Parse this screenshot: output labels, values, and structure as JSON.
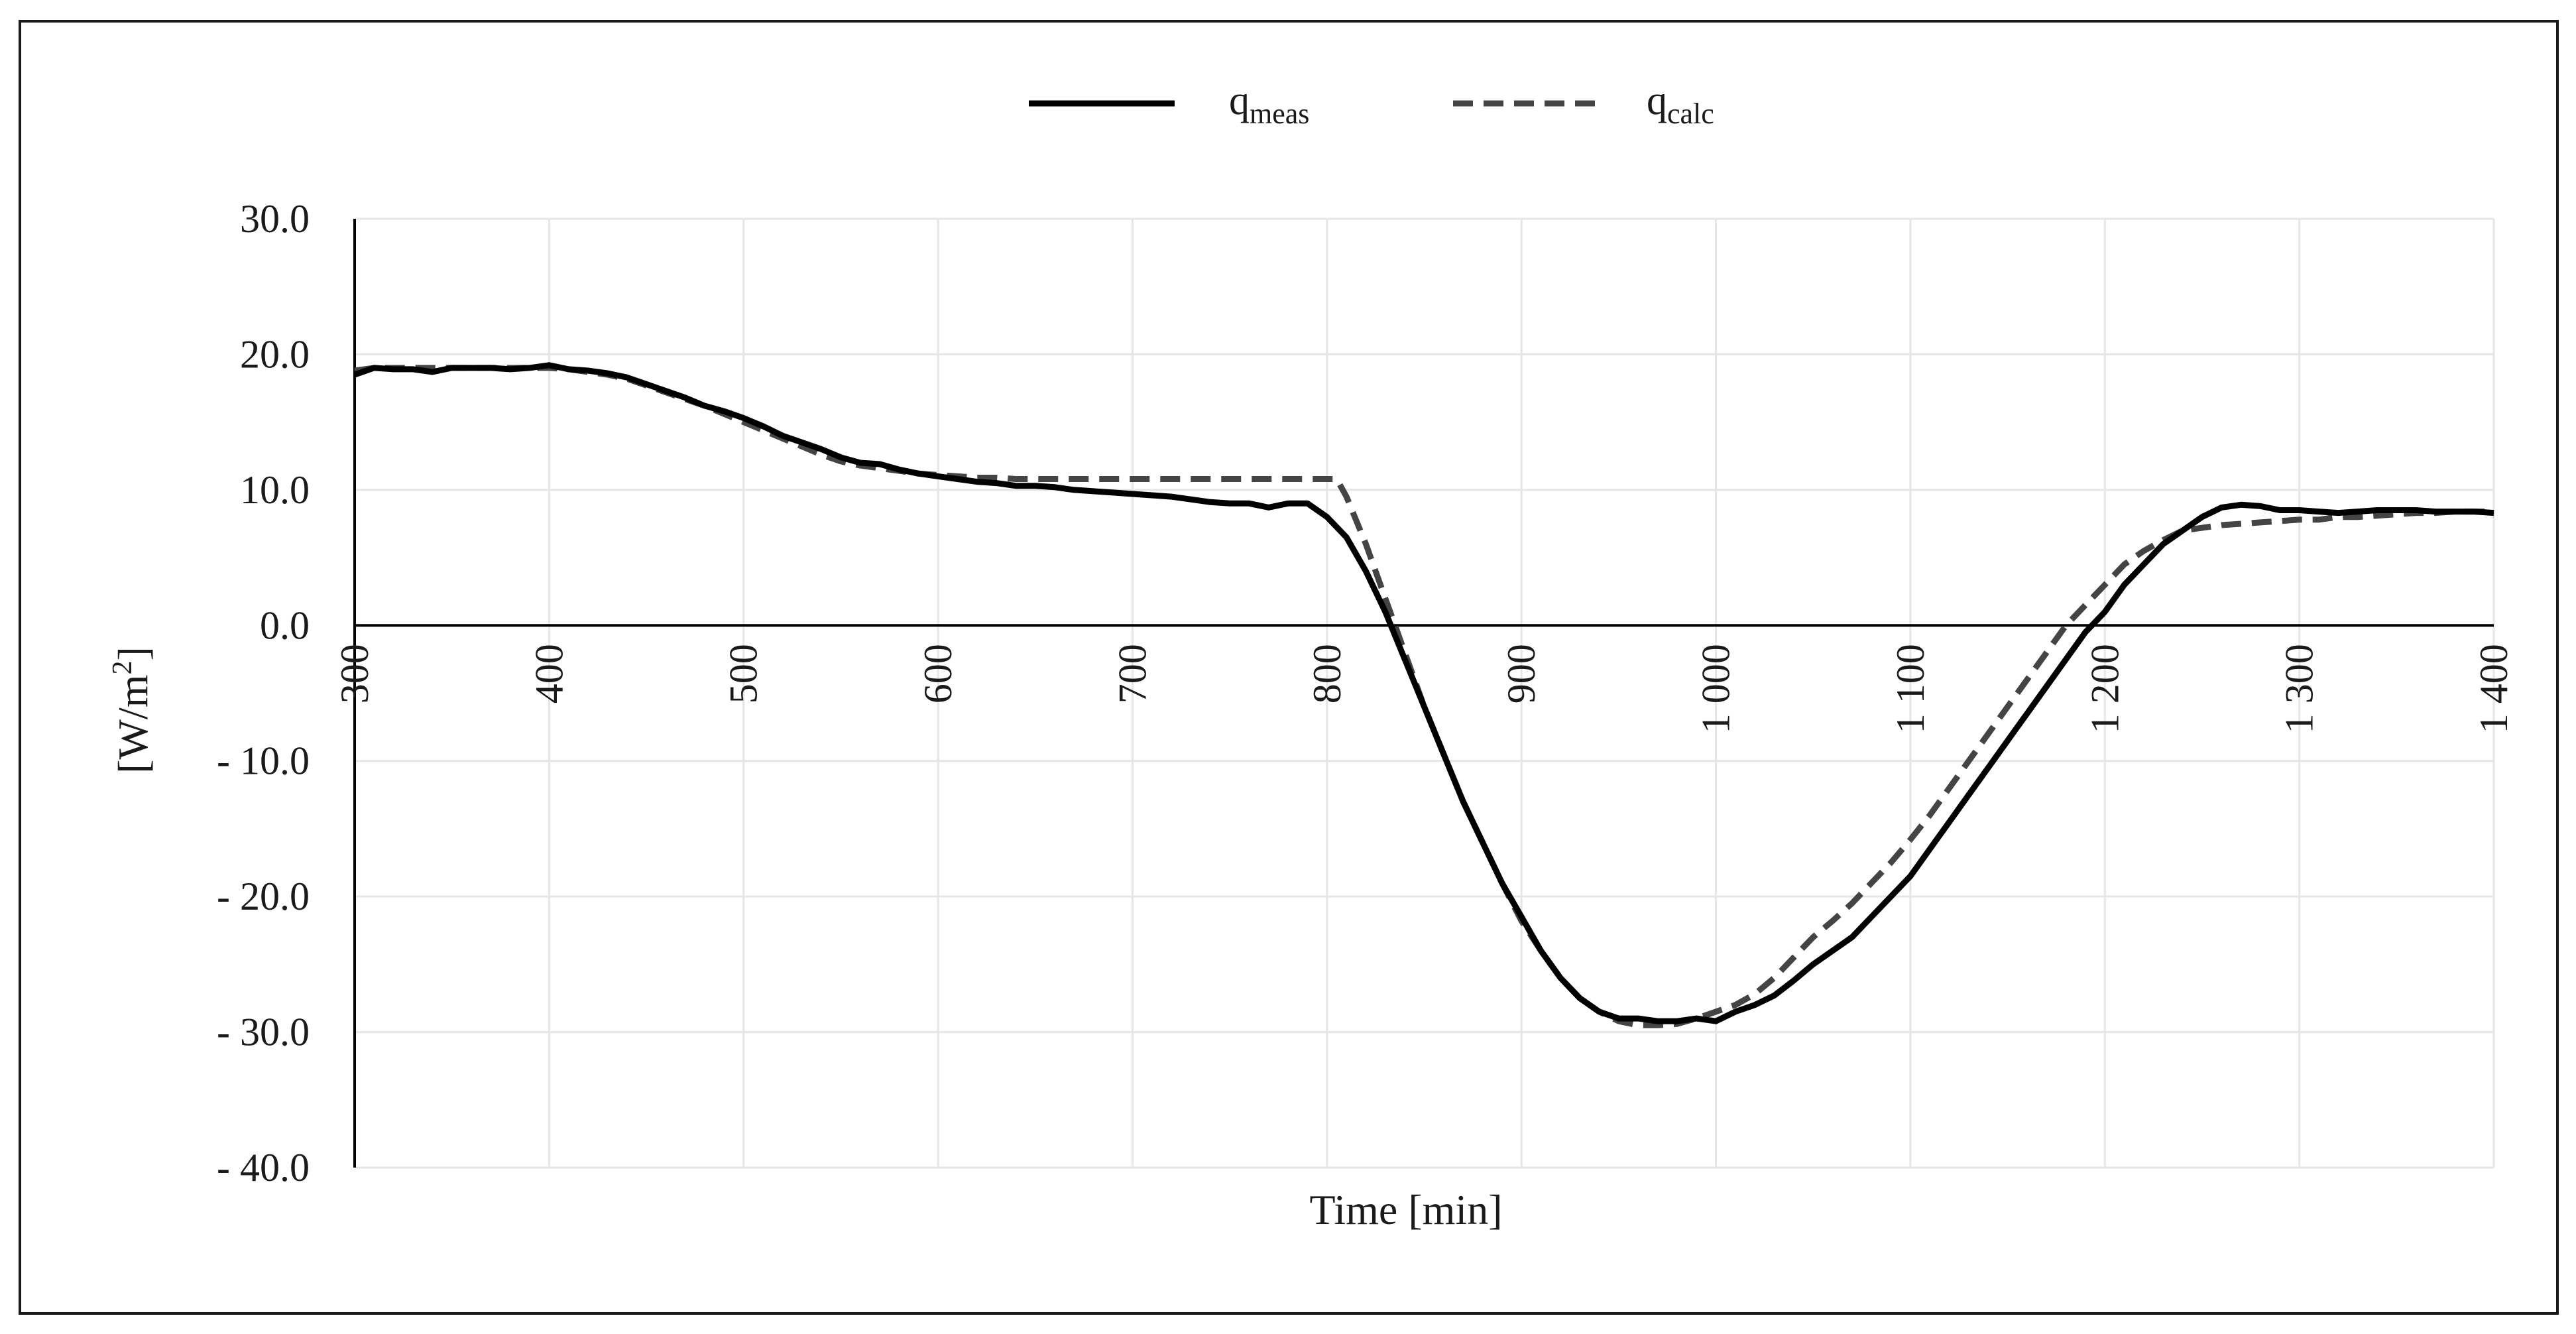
{
  "chart_data": {
    "type": "line",
    "title": "",
    "xlabel": "Time [min]",
    "ylabel_main": "[W/m",
    "ylabel_sup": "2",
    "ylabel_close": "]",
    "xlim": [
      300,
      1400
    ],
    "ylim": [
      -40,
      30
    ],
    "xticks": [
      {
        "value": 300,
        "label": "300"
      },
      {
        "value": 400,
        "label": "400"
      },
      {
        "value": 500,
        "label": "500"
      },
      {
        "value": 600,
        "label": "600"
      },
      {
        "value": 700,
        "label": "700"
      },
      {
        "value": 800,
        "label": "800"
      },
      {
        "value": 900,
        "label": "900"
      },
      {
        "value": 1000,
        "label": "1 000"
      },
      {
        "value": 1100,
        "label": "1 100"
      },
      {
        "value": 1200,
        "label": "1 200"
      },
      {
        "value": 1300,
        "label": "1 300"
      },
      {
        "value": 1400,
        "label": "1 400"
      }
    ],
    "yticks": [
      {
        "value": 30,
        "label": "30.0"
      },
      {
        "value": 20,
        "label": "20.0"
      },
      {
        "value": 10,
        "label": "10.0"
      },
      {
        "value": 0,
        "label": "0.0"
      },
      {
        "value": -10,
        "label": "- 10.0"
      },
      {
        "value": -20,
        "label": "- 20.0"
      },
      {
        "value": -30,
        "label": "- 30.0"
      },
      {
        "value": -40,
        "label": "- 40.0"
      }
    ],
    "grid": true,
    "legend_position": "top-center",
    "series": [
      {
        "name": "q_meas",
        "label_base": "q",
        "label_sub": "meas",
        "color": "#000000",
        "style": "solid",
        "x": [
          300,
          310,
          320,
          330,
          340,
          350,
          360,
          370,
          380,
          390,
          400,
          410,
          420,
          430,
          440,
          450,
          460,
          470,
          480,
          490,
          500,
          510,
          520,
          530,
          540,
          550,
          560,
          570,
          580,
          590,
          600,
          610,
          620,
          630,
          640,
          650,
          660,
          670,
          680,
          690,
          700,
          710,
          720,
          730,
          740,
          750,
          760,
          770,
          780,
          790,
          800,
          810,
          820,
          830,
          840,
          850,
          860,
          870,
          880,
          890,
          900,
          910,
          920,
          930,
          940,
          950,
          960,
          970,
          980,
          990,
          1000,
          1010,
          1020,
          1030,
          1040,
          1050,
          1060,
          1070,
          1080,
          1090,
          1100,
          1110,
          1120,
          1130,
          1140,
          1150,
          1160,
          1170,
          1180,
          1190,
          1200,
          1210,
          1220,
          1230,
          1240,
          1250,
          1260,
          1270,
          1280,
          1290,
          1300,
          1310,
          1320,
          1330,
          1340,
          1350,
          1360,
          1370,
          1380,
          1390,
          1400
        ],
        "y": [
          18.5,
          19.0,
          18.9,
          18.9,
          18.7,
          19.0,
          19.0,
          19.0,
          18.9,
          19.0,
          19.2,
          18.9,
          18.8,
          18.6,
          18.3,
          17.8,
          17.3,
          16.8,
          16.2,
          15.8,
          15.3,
          14.7,
          14.0,
          13.5,
          13.0,
          12.4,
          12.0,
          11.9,
          11.5,
          11.2,
          11.0,
          10.8,
          10.6,
          10.5,
          10.3,
          10.3,
          10.2,
          10.0,
          9.9,
          9.8,
          9.7,
          9.6,
          9.5,
          9.3,
          9.1,
          9.0,
          9.0,
          8.7,
          9.0,
          9.0,
          8.0,
          6.5,
          4.0,
          1.0,
          -2.5,
          -6.0,
          -9.5,
          -13.0,
          -16.0,
          -19.0,
          -21.5,
          -24.0,
          -26.0,
          -27.5,
          -28.5,
          -29.0,
          -29.0,
          -29.2,
          -29.2,
          -29.0,
          -29.2,
          -28.5,
          -28.0,
          -27.3,
          -26.2,
          -25.0,
          -24.0,
          -23.0,
          -21.5,
          -20.0,
          -18.5,
          -16.5,
          -14.5,
          -12.5,
          -10.5,
          -8.5,
          -6.5,
          -4.5,
          -2.5,
          -0.5,
          1.0,
          3.0,
          4.5,
          6.0,
          7.0,
          8.0,
          8.7,
          8.9,
          8.8,
          8.5,
          8.5,
          8.4,
          8.3,
          8.4,
          8.5,
          8.5,
          8.5,
          8.4,
          8.4,
          8.4,
          8.3
        ]
      },
      {
        "name": "q_calc",
        "label_base": "q",
        "label_sub": "calc",
        "color": "#444444",
        "style": "dashed",
        "x": [
          300,
          310,
          320,
          330,
          340,
          350,
          360,
          370,
          380,
          390,
          400,
          410,
          420,
          430,
          440,
          450,
          460,
          470,
          480,
          490,
          500,
          510,
          520,
          530,
          540,
          550,
          560,
          570,
          580,
          590,
          600,
          610,
          620,
          630,
          640,
          650,
          660,
          670,
          680,
          690,
          700,
          710,
          720,
          730,
          740,
          750,
          760,
          770,
          780,
          790,
          800,
          805,
          810,
          820,
          830,
          840,
          850,
          860,
          870,
          880,
          890,
          900,
          910,
          920,
          930,
          940,
          950,
          960,
          970,
          980,
          990,
          1000,
          1010,
          1020,
          1030,
          1040,
          1050,
          1060,
          1070,
          1080,
          1090,
          1100,
          1110,
          1120,
          1130,
          1140,
          1150,
          1160,
          1170,
          1180,
          1190,
          1200,
          1210,
          1220,
          1230,
          1240,
          1250,
          1260,
          1270,
          1280,
          1290,
          1300,
          1310,
          1320,
          1330,
          1340,
          1350,
          1360,
          1370,
          1380,
          1390,
          1400
        ],
        "y": [
          18.8,
          19.0,
          19.0,
          19.0,
          19.0,
          19.0,
          19.0,
          19.0,
          19.0,
          19.0,
          19.0,
          18.9,
          18.7,
          18.5,
          18.2,
          17.7,
          17.2,
          16.7,
          16.2,
          15.6,
          15.0,
          14.4,
          13.8,
          13.2,
          12.6,
          12.1,
          11.8,
          11.6,
          11.4,
          11.2,
          11.1,
          11.0,
          10.9,
          10.9,
          10.8,
          10.8,
          10.8,
          10.8,
          10.8,
          10.8,
          10.8,
          10.8,
          10.8,
          10.8,
          10.8,
          10.8,
          10.8,
          10.8,
          10.8,
          10.8,
          10.8,
          10.8,
          9.5,
          6.0,
          2.0,
          -2.0,
          -6.0,
          -9.5,
          -13.0,
          -16.0,
          -19.0,
          -21.8,
          -24.0,
          -26.0,
          -27.5,
          -28.5,
          -29.2,
          -29.5,
          -29.5,
          -29.4,
          -29.0,
          -28.5,
          -28.0,
          -27.2,
          -26.0,
          -24.5,
          -23.0,
          -21.8,
          -20.5,
          -19.0,
          -17.5,
          -15.8,
          -14.0,
          -12.0,
          -10.0,
          -8.0,
          -6.0,
          -4.0,
          -2.0,
          0.0,
          1.5,
          3.0,
          4.5,
          5.5,
          6.3,
          7.0,
          7.2,
          7.4,
          7.5,
          7.6,
          7.7,
          7.8,
          7.8,
          8.0,
          8.0,
          8.1,
          8.2,
          8.3,
          8.3,
          8.4,
          8.4,
          8.4
        ]
      }
    ]
  }
}
